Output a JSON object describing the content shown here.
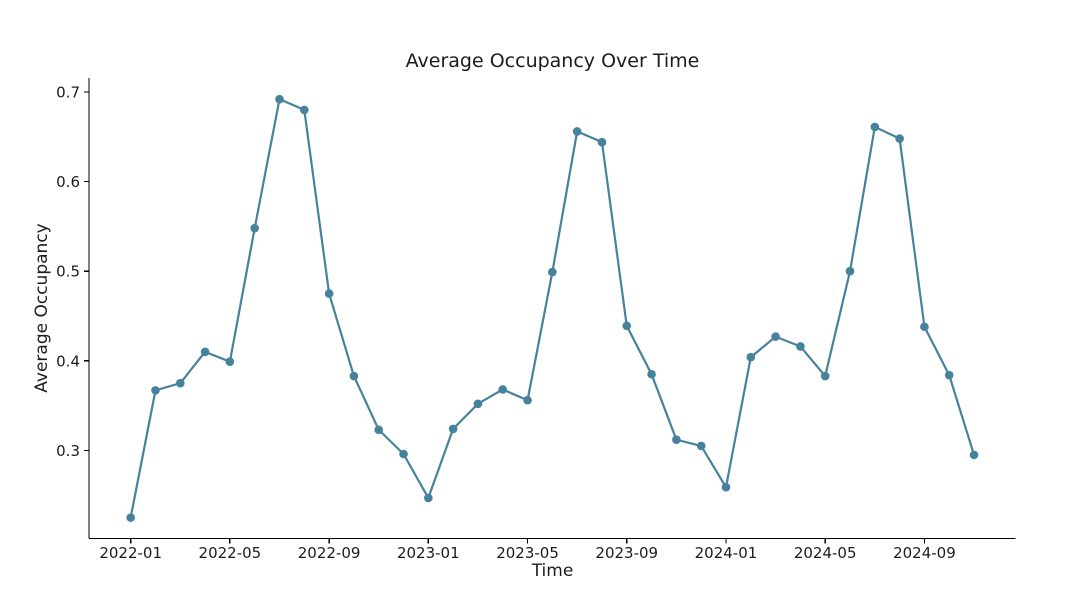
{
  "chart_data": {
    "type": "line",
    "title": "Average Occupancy Over Time",
    "xlabel": "Time",
    "ylabel": "Average Occupancy",
    "grid": false,
    "legend": "none",
    "marker": "circle",
    "line_color": "#46829b",
    "marker_color": "#46829b",
    "axis_color": "#000000",
    "text_color": "#1c1c1c",
    "background_color": "#ffffff",
    "x": [
      "2022-01",
      "2022-02",
      "2022-03",
      "2022-04",
      "2022-05",
      "2022-06",
      "2022-07",
      "2022-08",
      "2022-09",
      "2022-10",
      "2022-11",
      "2022-12",
      "2023-01",
      "2023-02",
      "2023-03",
      "2023-04",
      "2023-05",
      "2023-06",
      "2023-07",
      "2023-08",
      "2023-09",
      "2023-10",
      "2023-11",
      "2023-12",
      "2024-01",
      "2024-02",
      "2024-03",
      "2024-04",
      "2024-05",
      "2024-06",
      "2024-07",
      "2024-08",
      "2024-09",
      "2024-10",
      "2024-11"
    ],
    "values": [
      0.225,
      0.367,
      0.375,
      0.41,
      0.399,
      0.548,
      0.692,
      0.68,
      0.475,
      0.383,
      0.323,
      0.296,
      0.247,
      0.324,
      0.352,
      0.368,
      0.356,
      0.499,
      0.656,
      0.644,
      0.439,
      0.385,
      0.312,
      0.305,
      0.259,
      0.404,
      0.427,
      0.416,
      0.383,
      0.5,
      0.661,
      0.648,
      0.438,
      0.384,
      0.295
    ],
    "x_tick_indices": [
      0,
      4,
      8,
      12,
      16,
      20,
      24,
      28,
      32
    ],
    "x_tick_labels": [
      "2022-01",
      "2022-05",
      "2022-09",
      "2023-01",
      "2023-05",
      "2023-09",
      "2024-01",
      "2024-05",
      "2024-09"
    ],
    "y_ticks": [
      0.3,
      0.4,
      0.5,
      0.6,
      0.7
    ],
    "y_tick_labels": [
      "0.3",
      "0.4",
      "0.5",
      "0.6",
      "0.7"
    ],
    "ylim": [
      0.2017,
      0.7156
    ],
    "xlim_index": [
      -1.68,
      35.68
    ]
  }
}
